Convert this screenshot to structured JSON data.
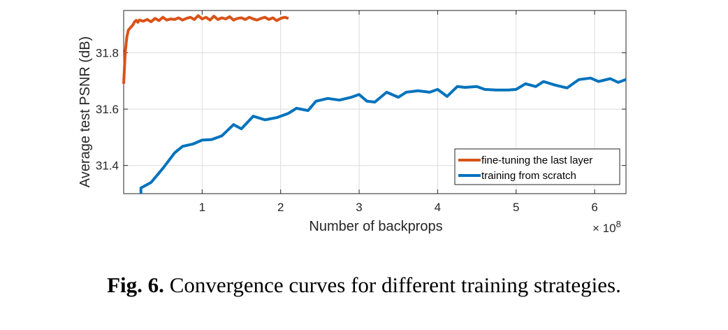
{
  "caption": {
    "label": "Fig. 6.",
    "text": " Convergence curves for different training strategies."
  },
  "chart_data": {
    "type": "line",
    "title": "",
    "xlabel": "Number of backprops",
    "ylabel": "Average test PSNR (dB)",
    "x_multiplier": "× 10",
    "x_multiplier_exponent": "8",
    "xlim": [
      0,
      6.4
    ],
    "ylim": [
      31.3,
      31.95
    ],
    "xticks": [
      1,
      2,
      3,
      4,
      5,
      6
    ],
    "yticks": [
      31.4,
      31.6,
      31.8
    ],
    "grid": true,
    "legend_position": "bottom-right",
    "series": [
      {
        "name": "fine-tuning the last layer",
        "color": "#D95319",
        "x": [
          0.0,
          0.02,
          0.04,
          0.06,
          0.08,
          0.1,
          0.12,
          0.14,
          0.16,
          0.18,
          0.2,
          0.25,
          0.3,
          0.35,
          0.4,
          0.45,
          0.5,
          0.55,
          0.6,
          0.65,
          0.7,
          0.75,
          0.8,
          0.85,
          0.9,
          0.95,
          1.0,
          1.05,
          1.1,
          1.15,
          1.2,
          1.25,
          1.3,
          1.35,
          1.4,
          1.45,
          1.5,
          1.55,
          1.6,
          1.65,
          1.7,
          1.75,
          1.8,
          1.85,
          1.9,
          1.95,
          2.0,
          2.05,
          2.1
        ],
        "y": [
          31.69,
          31.8,
          31.855,
          31.88,
          31.887,
          31.893,
          31.9,
          31.91,
          31.915,
          31.908,
          31.916,
          31.912,
          31.918,
          31.91,
          31.922,
          31.914,
          31.926,
          31.916,
          31.92,
          31.918,
          31.924,
          31.916,
          31.922,
          31.926,
          31.918,
          31.932,
          31.92,
          31.926,
          31.916,
          31.93,
          31.918,
          31.924,
          31.92,
          31.928,
          31.916,
          31.922,
          31.924,
          31.918,
          31.926,
          31.92,
          31.916,
          31.922,
          31.926,
          31.918,
          31.924,
          31.914,
          31.922,
          31.926,
          31.922
        ]
      },
      {
        "name": "training from scratch",
        "color": "#0072BD",
        "x": [
          0.22,
          0.22,
          0.35,
          0.5,
          0.65,
          0.75,
          0.88,
          1.0,
          1.12,
          1.25,
          1.4,
          1.5,
          1.65,
          1.8,
          1.95,
          2.1,
          2.2,
          2.35,
          2.45,
          2.6,
          2.75,
          2.9,
          3.0,
          3.1,
          3.2,
          3.35,
          3.5,
          3.6,
          3.75,
          3.9,
          4.0,
          4.12,
          4.25,
          4.35,
          4.5,
          4.6,
          4.75,
          4.9,
          5.0,
          5.12,
          5.25,
          5.35,
          5.5,
          5.65,
          5.8,
          5.95,
          6.05,
          6.2,
          6.3,
          6.4
        ],
        "y": [
          31.3,
          31.32,
          31.34,
          31.39,
          31.445,
          31.468,
          31.476,
          31.49,
          31.492,
          31.505,
          31.545,
          31.53,
          31.575,
          31.562,
          31.57,
          31.585,
          31.603,
          31.595,
          31.628,
          31.638,
          31.632,
          31.642,
          31.652,
          31.628,
          31.625,
          31.66,
          31.642,
          31.66,
          31.665,
          31.66,
          31.67,
          31.645,
          31.68,
          31.677,
          31.68,
          31.67,
          31.668,
          31.668,
          31.67,
          31.69,
          31.68,
          31.698,
          31.685,
          31.675,
          31.705,
          31.71,
          31.698,
          31.708,
          31.695,
          31.705
        ]
      }
    ]
  }
}
